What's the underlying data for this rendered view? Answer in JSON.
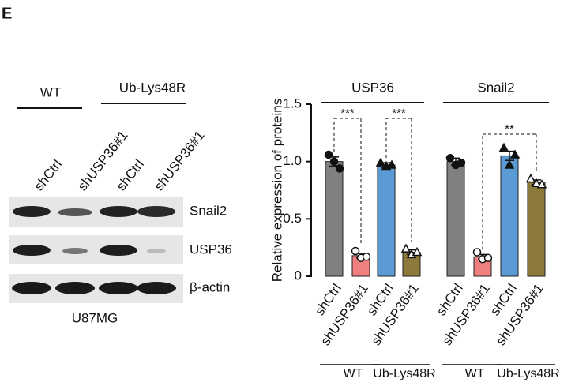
{
  "panel_label": "E",
  "blot": {
    "conditions": [
      "WT",
      "Ub-Lys48R"
    ],
    "lanes": [
      "shCtrl",
      "shUSP36#1",
      "shCtrl",
      "shUSP36#1"
    ],
    "bands": [
      "Snail2",
      "USP36",
      "β-actin"
    ],
    "cell_line": "U87MG"
  },
  "chart_data": {
    "type": "bar",
    "y_label": "Relative expression of proteins",
    "categories": [
      "shCtrl",
      "shUSP36#1",
      "shCtrl",
      "shUSP36#1",
      "shCtrl",
      "shUSP36#1",
      "shCtrl",
      "shUSP36#1"
    ],
    "values": [
      1.0,
      0.18,
      0.97,
      0.21,
      1.0,
      0.17,
      1.05,
      0.82
    ],
    "errors": [
      0.04,
      0.02,
      0.02,
      0.02,
      0.03,
      0.02,
      0.04,
      0.02
    ],
    "points": [
      [
        1.06,
        1.0,
        0.94
      ],
      [
        0.22,
        0.16,
        0.17
      ],
      [
        0.99,
        0.96,
        0.97
      ],
      [
        0.24,
        0.19,
        0.21
      ],
      [
        1.03,
        0.97,
        0.99
      ],
      [
        0.21,
        0.15,
        0.16
      ],
      [
        1.12,
        0.97,
        1.06
      ],
      [
        0.85,
        0.81,
        0.8
      ]
    ],
    "colors": [
      "#808080",
      "#f08080",
      "#5b9bd5",
      "#8b7a3a",
      "#808080",
      "#f08080",
      "#5b9bd5",
      "#8b7a3a"
    ],
    "markers": [
      "filled-circle",
      "open-circle",
      "filled-triangle",
      "open-triangle",
      "filled-circle",
      "open-circle",
      "filled-triangle",
      "open-triangle"
    ],
    "ylim": [
      0,
      1.5
    ],
    "yticks": [
      0,
      0.5,
      {
        "value": 1,
        "label": "1.0"
      },
      1.5
    ],
    "groups": [
      {
        "name": "USP36",
        "range": [
          0,
          3
        ]
      },
      {
        "name": "Snail2",
        "range": [
          4,
          7
        ]
      }
    ],
    "conditions": [
      {
        "name": "WT",
        "range": [
          0,
          1
        ]
      },
      {
        "name": "Ub-Lys48R",
        "range": [
          2,
          3
        ]
      },
      {
        "name": "WT",
        "range": [
          4,
          5
        ]
      },
      {
        "name": "Ub-Lys48R",
        "range": [
          6,
          7
        ]
      }
    ],
    "significance": [
      {
        "label": "***",
        "pair": [
          0,
          1
        ]
      },
      {
        "label": "***",
        "pair": [
          2,
          3
        ]
      },
      {
        "label": "**",
        "pair": [
          5,
          7
        ]
      }
    ]
  }
}
